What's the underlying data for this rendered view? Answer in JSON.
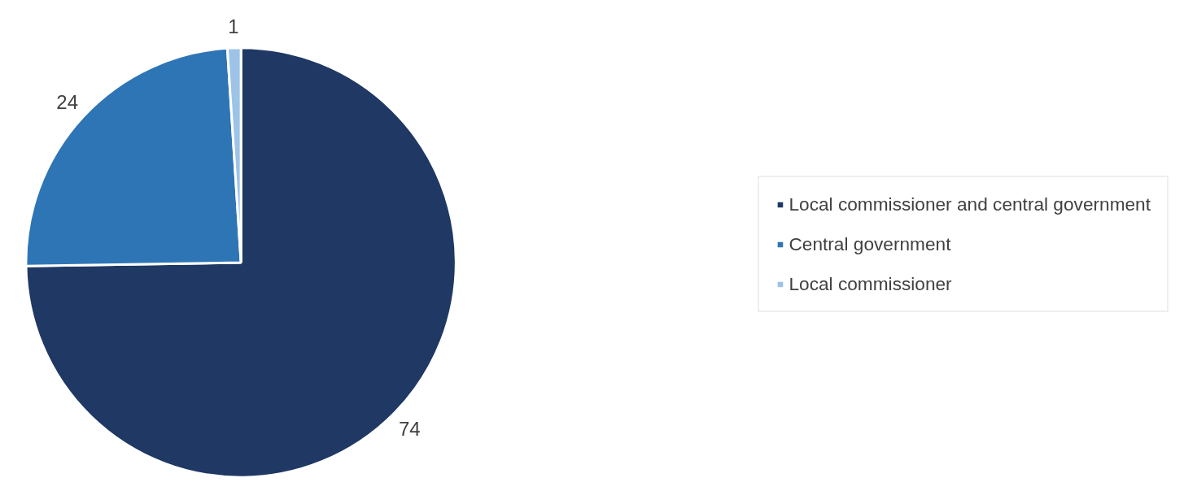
{
  "chart_data": {
    "type": "pie",
    "categories": [
      "Local commissioner and central government",
      "Central government",
      "Local commissioner"
    ],
    "values": [
      74,
      24,
      1
    ],
    "colors": [
      "#1f3864",
      "#2e75b6",
      "#9dc3e6"
    ],
    "data_labels": true,
    "legend": "right"
  }
}
